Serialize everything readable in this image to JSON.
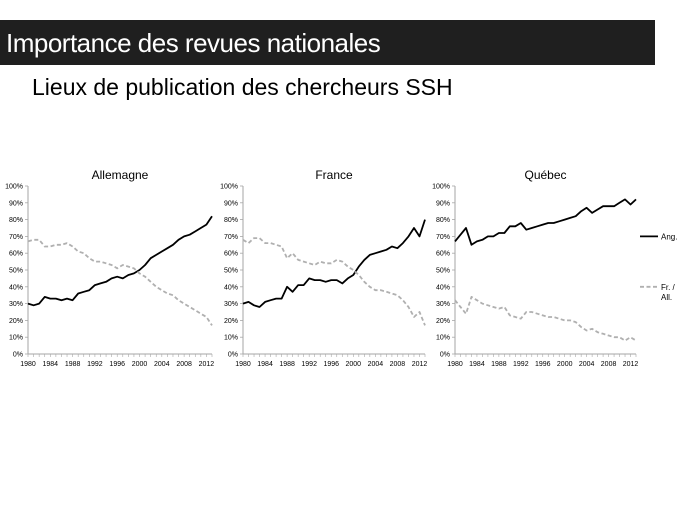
{
  "slide": {
    "title": "Importance des revues nationales",
    "subtitle": "Lieux de publication des chercheurs SSH"
  },
  "colors": {
    "english": "#000000",
    "national": "#b0b0b0",
    "axis": "#a6a6a6"
  },
  "chart_data": [
    {
      "type": "line",
      "title": "Allemagne",
      "x": [
        1980,
        1981,
        1982,
        1983,
        1984,
        1985,
        1986,
        1987,
        1988,
        1989,
        1990,
        1991,
        1992,
        1993,
        1994,
        1995,
        1996,
        1997,
        1998,
        1999,
        2000,
        2001,
        2002,
        2003,
        2004,
        2005,
        2006,
        2007,
        2008,
        2009,
        2010,
        2011,
        2012,
        2013
      ],
      "x_ticks": [
        "1980",
        "1984",
        "1988",
        "1992",
        "1996",
        "2000",
        "2004",
        "2008",
        "2012"
      ],
      "y_ticks": [
        "0%",
        "10%",
        "20%",
        "30%",
        "40%",
        "50%",
        "60%",
        "70%",
        "80%",
        "90%",
        "100%"
      ],
      "ylim": [
        0,
        100
      ],
      "grid": true,
      "series": [
        {
          "key": "english",
          "name": "Ang.",
          "style": "solid",
          "values": [
            30,
            29,
            30,
            34,
            33,
            33,
            32,
            33,
            32,
            36,
            37,
            38,
            41,
            42,
            43,
            45,
            46,
            45,
            47,
            48,
            50,
            53,
            57,
            59,
            61,
            63,
            65,
            68,
            70,
            71,
            73,
            75,
            77,
            82
          ]
        },
        {
          "key": "national",
          "name": "Fr. / All.",
          "style": "dashed",
          "values": [
            67,
            68,
            68,
            64,
            64,
            65,
            65,
            66,
            64,
            61,
            60,
            57,
            55,
            55,
            54,
            53,
            51,
            53,
            52,
            51,
            48,
            46,
            43,
            40,
            38,
            36,
            35,
            32,
            30,
            28,
            26,
            24,
            22,
            17
          ]
        }
      ]
    },
    {
      "type": "line",
      "title": "France",
      "x": [
        1980,
        1981,
        1982,
        1983,
        1984,
        1985,
        1986,
        1987,
        1988,
        1989,
        1990,
        1991,
        1992,
        1993,
        1994,
        1995,
        1996,
        1997,
        1998,
        1999,
        2000,
        2001,
        2002,
        2003,
        2004,
        2005,
        2006,
        2007,
        2008,
        2009,
        2010,
        2011,
        2012,
        2013
      ],
      "x_ticks": [
        "1980",
        "1984",
        "1988",
        "1992",
        "1996",
        "2000",
        "2004",
        "2008",
        "2012"
      ],
      "y_ticks": [
        "0%",
        "10%",
        "20%",
        "30%",
        "40%",
        "50%",
        "60%",
        "70%",
        "80%",
        "90%",
        "100%"
      ],
      "ylim": [
        0,
        100
      ],
      "grid": true,
      "series": [
        {
          "key": "english",
          "name": "Ang.",
          "style": "solid",
          "values": [
            30,
            31,
            29,
            28,
            31,
            32,
            33,
            33,
            40,
            37,
            41,
            41,
            45,
            44,
            44,
            43,
            44,
            44,
            42,
            45,
            47,
            52,
            56,
            59,
            60,
            61,
            62,
            64,
            63,
            66,
            70,
            75,
            70,
            80
          ]
        },
        {
          "key": "national",
          "name": "Fr. / All.",
          "style": "dashed",
          "values": [
            68,
            66,
            69,
            69,
            66,
            66,
            65,
            64,
            57,
            60,
            56,
            55,
            54,
            53,
            55,
            54,
            54,
            56,
            55,
            52,
            50,
            47,
            43,
            40,
            38,
            38,
            37,
            36,
            35,
            32,
            28,
            22,
            25,
            17
          ]
        }
      ]
    },
    {
      "type": "line",
      "title": "Québec",
      "x": [
        1980,
        1981,
        1982,
        1983,
        1984,
        1985,
        1986,
        1987,
        1988,
        1989,
        1990,
        1991,
        1992,
        1993,
        1994,
        1995,
        1996,
        1997,
        1998,
        1999,
        2000,
        2001,
        2002,
        2003,
        2004,
        2005,
        2006,
        2007,
        2008,
        2009,
        2010,
        2011,
        2012,
        2013
      ],
      "x_ticks": [
        "1980",
        "1984",
        "1988",
        "1992",
        "1996",
        "2000",
        "2004",
        "2008",
        "2012"
      ],
      "y_ticks": [
        "0%",
        "10%",
        "20%",
        "30%",
        "40%",
        "50%",
        "60%",
        "70%",
        "80%",
        "90%",
        "100%"
      ],
      "ylim": [
        0,
        100
      ],
      "grid": true,
      "legend": {
        "position": "right",
        "entries": [
          "Ang.",
          "Fr. / All."
        ]
      },
      "series": [
        {
          "key": "english",
          "name": "Ang.",
          "style": "solid",
          "values": [
            67,
            71,
            75,
            65,
            67,
            68,
            70,
            70,
            72,
            72,
            76,
            76,
            78,
            74,
            75,
            76,
            77,
            78,
            78,
            79,
            80,
            81,
            82,
            85,
            87,
            84,
            86,
            88,
            88,
            88,
            90,
            92,
            89,
            92
          ]
        },
        {
          "key": "national",
          "name": "Fr. / All.",
          "style": "dashed",
          "values": [
            32,
            28,
            24,
            34,
            32,
            30,
            29,
            28,
            27,
            28,
            23,
            22,
            21,
            25,
            25,
            24,
            23,
            22,
            22,
            21,
            20,
            20,
            19,
            16,
            14,
            15,
            13,
            12,
            11,
            10,
            10,
            8,
            10,
            8
          ]
        }
      ]
    }
  ]
}
